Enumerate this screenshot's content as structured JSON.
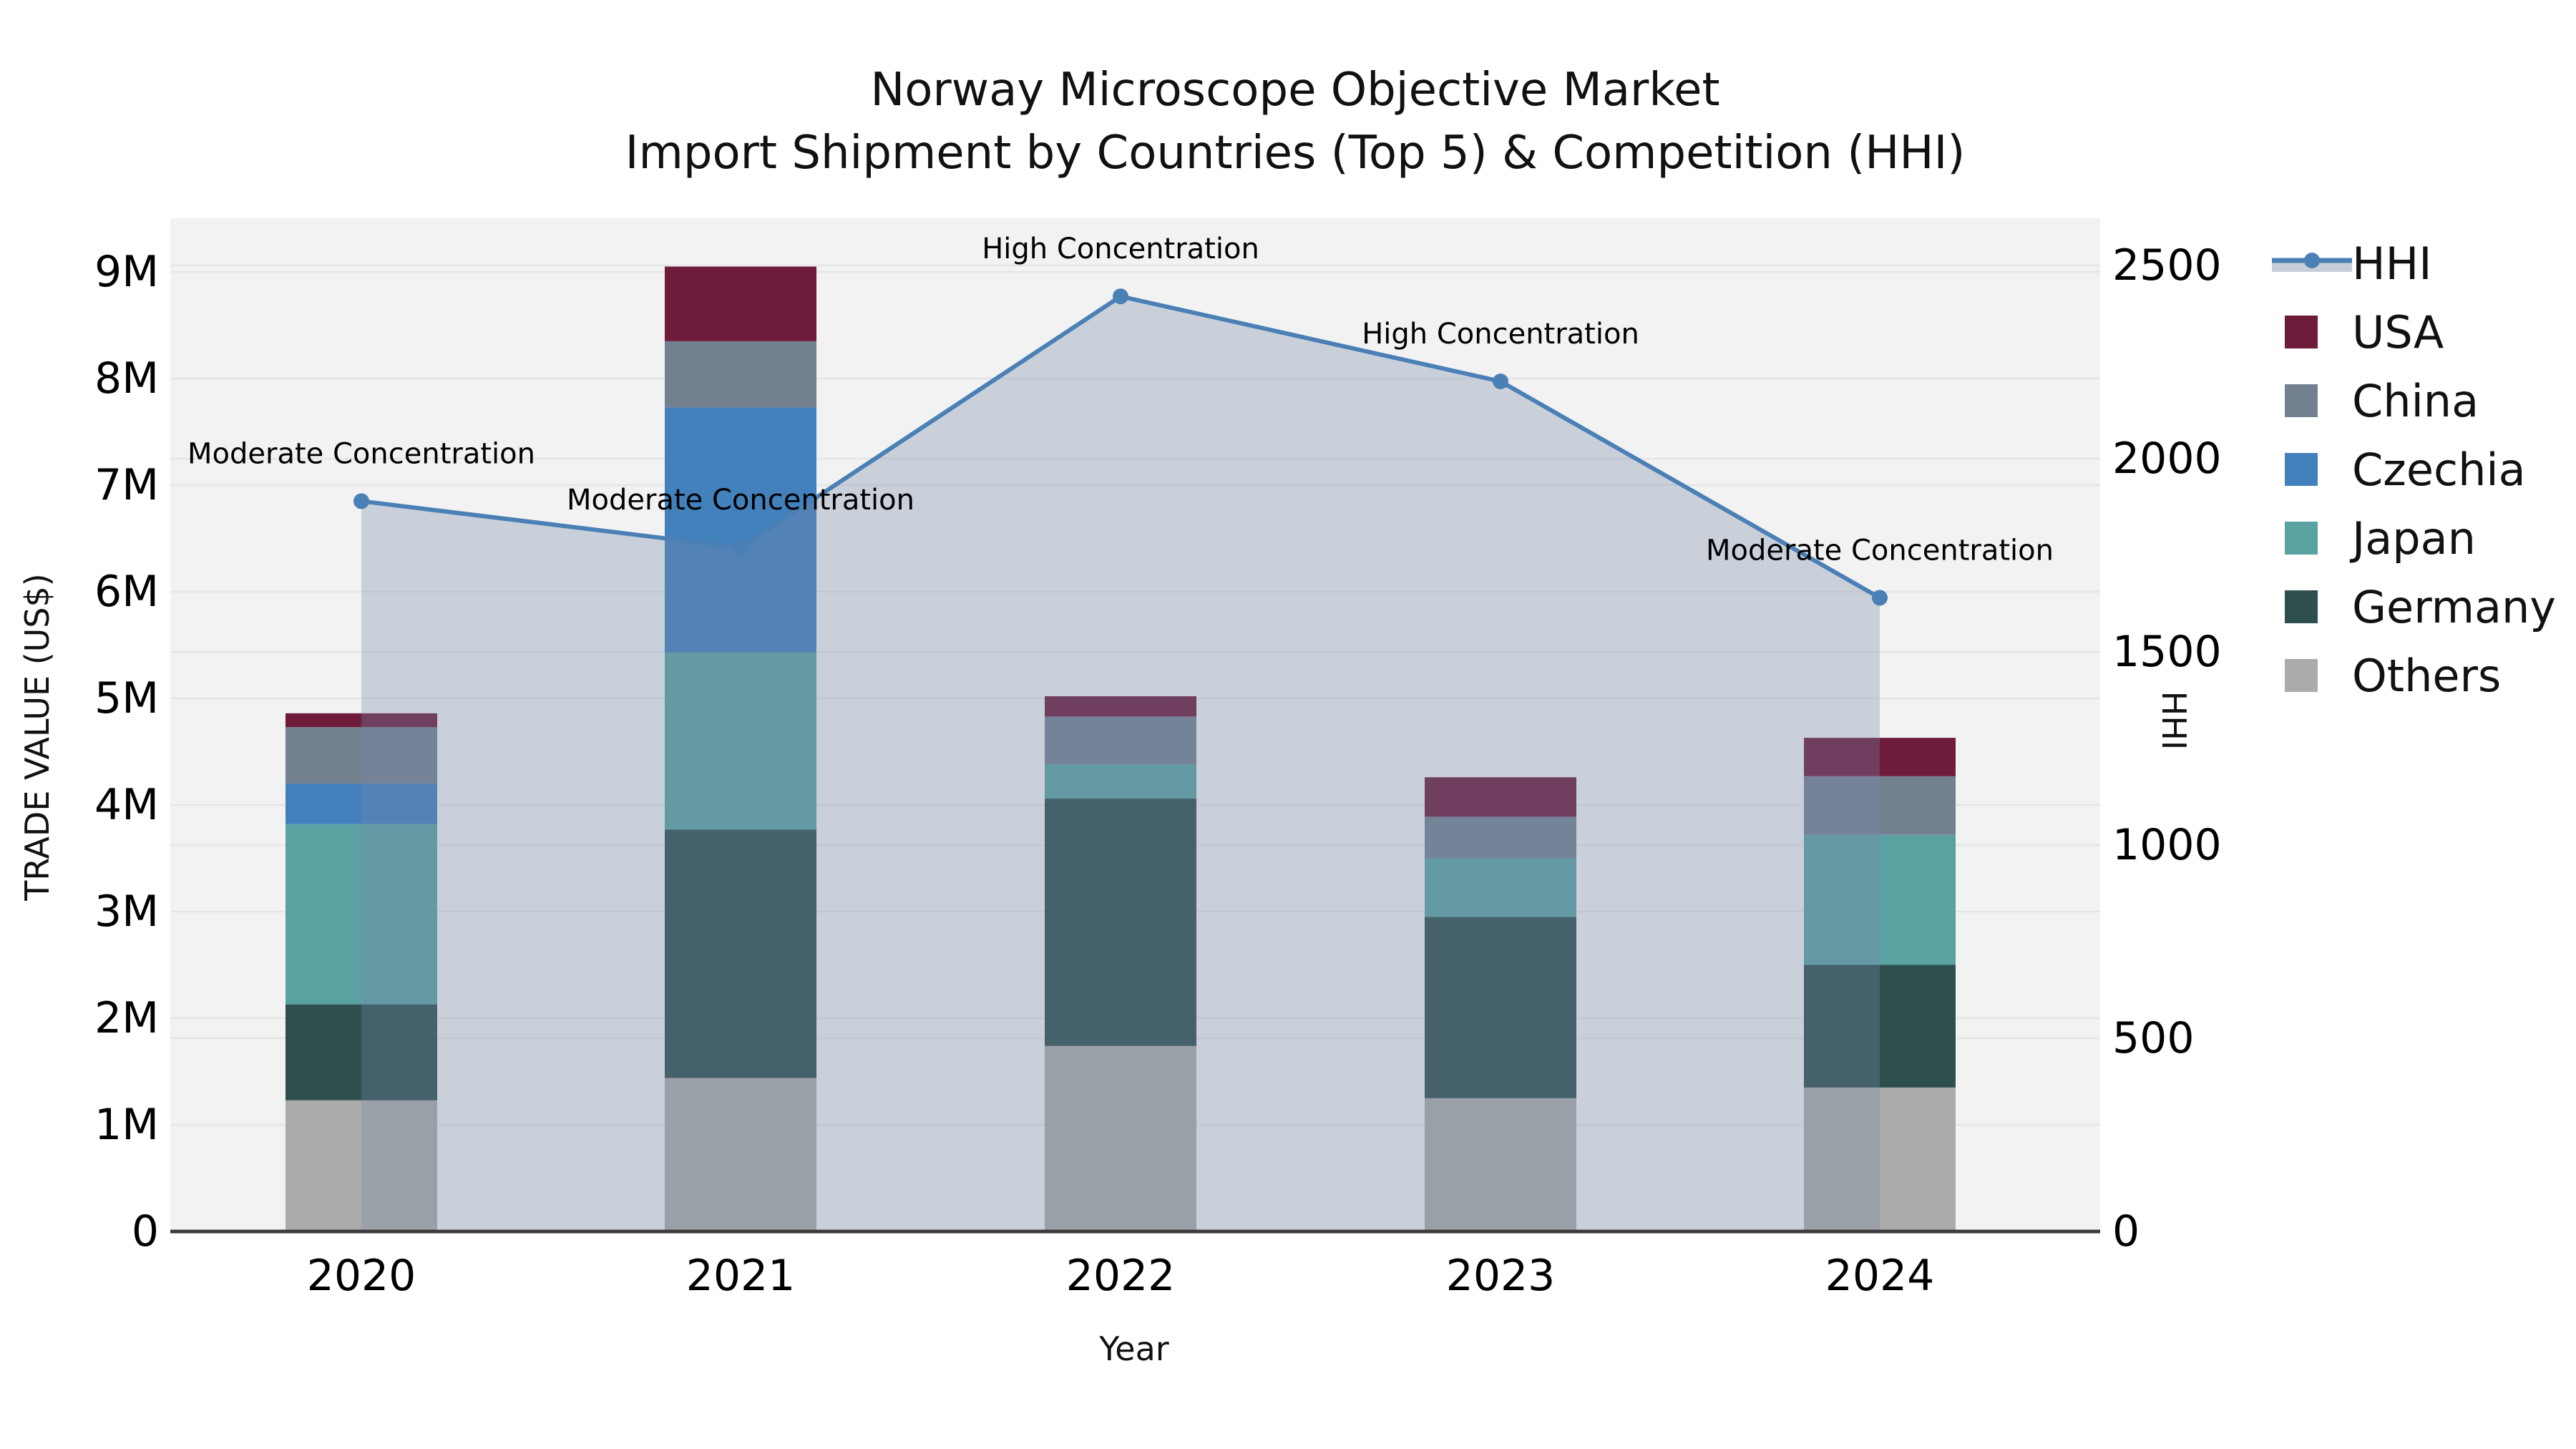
{
  "title": "Norway Microscope Objective Market",
  "subtitle": "Import Shipment by Countries (Top 5) & Competition (HHI)",
  "colors": {
    "plot_bg": "#F2F2F2",
    "grid": "#E5E5E5",
    "axis_line": "#3B3B3B",
    "hhi_line": "#4A80B5",
    "area_fill": "rgba(119,138,169,0.32)",
    "legend_band": "#C8CFD9",
    "palette": {
      "USA": "#6E1B3C",
      "China": "#73808F",
      "Czechia": "#4381BD",
      "Japan": "#5AA2A2",
      "Germany": "#2F4F4F",
      "Others": "#ABABA9"
    }
  },
  "legend": {
    "items": [
      {
        "label": "HHI",
        "swatch": "line"
      },
      {
        "label": "USA",
        "swatch": "USA"
      },
      {
        "label": "China",
        "swatch": "China"
      },
      {
        "label": "Czechia",
        "swatch": "Czechia"
      },
      {
        "label": "Japan",
        "swatch": "Japan"
      },
      {
        "label": "Germany",
        "swatch": "Germany"
      },
      {
        "label": "Others",
        "swatch": "Others"
      }
    ]
  },
  "chart_data": {
    "type": "bar+line",
    "title": "Norway Microscope Objective Market",
    "subtitle": "Import Shipment by Countries (Top 5) & Competition (HHI)",
    "categories": [
      "2020",
      "2021",
      "2022",
      "2023",
      "2024"
    ],
    "stack_order_bottom_to_top": [
      "Others",
      "Germany",
      "Japan",
      "Czechia",
      "China",
      "USA"
    ],
    "series": [
      {
        "name": "USA",
        "type": "bar",
        "values_musd": [
          0.13,
          0.7,
          0.19,
          0.37,
          0.36
        ]
      },
      {
        "name": "China",
        "type": "bar",
        "values_musd": [
          0.53,
          0.62,
          0.45,
          0.39,
          0.55
        ]
      },
      {
        "name": "Czechia",
        "type": "bar",
        "values_musd": [
          0.38,
          2.3,
          0,
          0,
          0
        ]
      },
      {
        "name": "Japan",
        "type": "bar",
        "values_musd": [
          1.69,
          1.66,
          0.32,
          0.55,
          1.22
        ]
      },
      {
        "name": "Germany",
        "type": "bar",
        "values_musd": [
          0.9,
          2.33,
          2.32,
          1.7,
          1.15
        ]
      },
      {
        "name": "Others",
        "type": "bar",
        "values_musd": [
          1.23,
          1.44,
          1.74,
          1.25,
          1.35
        ]
      }
    ],
    "bar_totals_musd": [
      4.86,
      9.05,
      5.02,
      4.26,
      4.63
    ],
    "hhi": {
      "name": "HHI",
      "type": "line",
      "axis": "right",
      "values": [
        1890,
        1770,
        2420,
        2200,
        1640
      ]
    },
    "annotations": [
      {
        "category": "2020",
        "text": "Moderate Concentration"
      },
      {
        "category": "2021",
        "text": "Moderate Concentration"
      },
      {
        "category": "2022",
        "text": "High Concentration"
      },
      {
        "category": "2023",
        "text": "High Concentration"
      },
      {
        "category": "2024",
        "text": "Moderate Concentration"
      }
    ],
    "left_axis": {
      "label": "TRADE VALUE (US$)",
      "ticks": [
        "0",
        "1M",
        "2M",
        "3M",
        "4M",
        "5M",
        "6M",
        "7M",
        "8M",
        "9M"
      ],
      "tick_values_musd": [
        0,
        1,
        2,
        3,
        4,
        5,
        6,
        7,
        8,
        9
      ],
      "range_musd": [
        0,
        9.5
      ]
    },
    "right_axis": {
      "label": "HHI",
      "ticks": [
        "0",
        "500",
        "1000",
        "1500",
        "2000",
        "2500"
      ],
      "tick_values": [
        0,
        500,
        1000,
        1500,
        2000,
        2500
      ],
      "range": [
        0,
        2530
      ]
    },
    "x_axis": {
      "label": "Year"
    },
    "legend_position": "right",
    "grid": true
  }
}
